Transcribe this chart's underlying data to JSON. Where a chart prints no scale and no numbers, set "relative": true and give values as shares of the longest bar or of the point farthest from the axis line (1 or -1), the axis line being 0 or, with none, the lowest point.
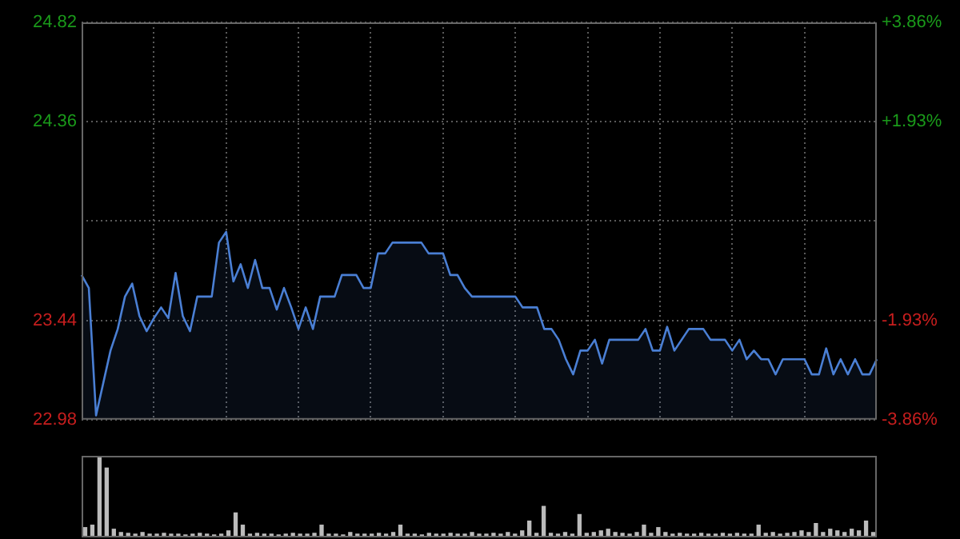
{
  "chart_data": [
    {
      "type": "area",
      "categories": [
        null,
        null,
        null,
        null,
        null,
        null,
        null,
        null,
        null,
        null,
        null,
        null,
        null,
        null,
        null,
        null,
        null,
        null,
        null,
        null,
        null,
        null,
        null,
        null,
        null,
        null,
        null,
        null,
        null,
        null,
        null,
        null,
        null,
        null,
        null,
        null,
        null,
        null,
        null,
        null,
        null,
        null,
        null,
        null,
        null,
        null,
        null,
        null,
        null,
        null,
        null,
        null,
        null,
        null,
        null,
        null,
        null,
        null,
        null,
        null,
        null,
        null,
        null,
        null,
        null,
        null,
        null,
        null,
        null,
        null,
        null,
        null,
        null,
        null,
        null,
        null,
        null,
        null,
        null,
        null,
        null,
        null,
        null,
        null,
        null,
        null,
        null,
        null,
        null,
        null,
        null,
        null,
        null,
        null,
        null,
        null,
        null,
        null,
        null,
        null,
        null,
        null,
        null,
        null,
        null,
        null,
        null,
        null,
        null,
        null,
        null
      ],
      "series": [
        {
          "color": "#4a7fd4",
          "values": [
            23.65,
            23.59,
            23.0,
            23.15,
            23.3,
            23.4,
            23.55,
            23.61,
            23.46,
            23.39,
            23.45,
            23.5,
            23.45,
            23.66,
            23.46,
            23.39,
            23.55,
            23.55,
            23.55,
            23.8,
            23.85,
            23.62,
            23.7,
            23.59,
            23.72,
            23.59,
            23.59,
            23.49,
            23.59,
            23.5,
            23.4,
            23.5,
            23.4,
            23.55,
            23.55,
            23.55,
            23.65,
            23.65,
            23.65,
            23.59,
            23.59,
            23.75,
            23.75,
            23.8,
            23.8,
            23.8,
            23.8,
            23.8,
            23.75,
            23.75,
            23.75,
            23.65,
            23.65,
            23.59,
            23.55,
            23.55,
            23.55,
            23.55,
            23.55,
            23.55,
            23.55,
            23.5,
            23.5,
            23.5,
            23.4,
            23.4,
            23.35,
            23.26,
            23.19,
            23.3,
            23.3,
            23.35,
            23.24,
            23.35,
            23.35,
            23.35,
            23.35,
            23.35,
            23.4,
            23.3,
            23.3,
            23.41,
            23.3,
            23.35,
            23.4,
            23.4,
            23.4,
            23.35,
            23.35,
            23.35,
            23.3,
            23.35,
            23.26,
            23.3,
            23.26,
            23.26,
            23.19,
            23.26,
            23.26,
            23.26,
            23.26,
            23.19,
            23.19,
            23.31,
            23.19,
            23.26,
            23.19,
            23.26,
            23.19,
            23.19,
            23.26
          ]
        }
      ],
      "ylim": [
        22.98,
        24.82
      ],
      "yticks": [
        22.98,
        23.44,
        {
          "value": 23.9,
          "label": null
        },
        24.36,
        24.82
      ],
      "y2lim": [
        -3.86,
        3.86
      ],
      "y2ticks": [
        {
          "value": -3.86,
          "label": "-3.86%"
        },
        {
          "value": -1.93,
          "label": "-1.93%"
        },
        {
          "value": 0,
          "label": null
        },
        {
          "value": 1.93,
          "label": "+1.93%"
        },
        {
          "value": 3.86,
          "label": "+3.86%"
        }
      ],
      "grid": true
    },
    {
      "type": "bar",
      "relative": true,
      "color": "#bbbbbb",
      "categories": [
        null,
        null,
        null,
        null,
        null,
        null,
        null,
        null,
        null,
        null,
        null,
        null,
        null,
        null,
        null,
        null,
        null,
        null,
        null,
        null,
        null,
        null,
        null,
        null,
        null,
        null,
        null,
        null,
        null,
        null,
        null,
        null,
        null,
        null,
        null,
        null,
        null,
        null,
        null,
        null,
        null,
        null,
        null,
        null,
        null,
        null,
        null,
        null,
        null,
        null,
        null,
        null,
        null,
        null,
        null,
        null,
        null,
        null,
        null,
        null,
        null,
        null,
        null,
        null,
        null,
        null,
        null,
        null,
        null,
        null,
        null,
        null,
        null,
        null,
        null,
        null,
        null,
        null,
        null,
        null,
        null,
        null,
        null,
        null,
        null,
        null,
        null,
        null,
        null,
        null,
        null,
        null,
        null,
        null,
        null,
        null,
        null,
        null,
        null,
        null,
        null,
        null,
        null,
        null,
        null,
        null,
        null,
        null,
        null,
        null,
        null
      ],
      "values": [
        0.12,
        0.15,
        1,
        0.85,
        0.1,
        0.06,
        0.05,
        0.04,
        0.06,
        0.04,
        0.04,
        0.05,
        0.04,
        0.04,
        0.03,
        0.04,
        0.05,
        0.04,
        0.03,
        0.04,
        0.08,
        0.3,
        0.15,
        0.04,
        0.05,
        0.04,
        0.04,
        0.03,
        0.04,
        0.05,
        0.04,
        0.04,
        0.05,
        0.15,
        0.04,
        0.04,
        0.03,
        0.06,
        0.04,
        0.04,
        0.04,
        0.05,
        0.04,
        0.06,
        0.15,
        0.04,
        0.04,
        0.03,
        0.05,
        0.04,
        0.04,
        0.05,
        0.04,
        0.04,
        0.06,
        0.04,
        0.04,
        0.05,
        0.04,
        0.06,
        0.04,
        0.08,
        0.2,
        0.05,
        0.38,
        0.05,
        0.04,
        0.06,
        0.04,
        0.28,
        0.05,
        0.06,
        0.08,
        0.1,
        0.06,
        0.05,
        0.04,
        0.06,
        0.15,
        0.05,
        0.12,
        0.06,
        0.04,
        0.05,
        0.04,
        0.04,
        0.05,
        0.04,
        0.04,
        0.05,
        0.04,
        0.05,
        0.04,
        0.04,
        0.15,
        0.05,
        0.06,
        0.04,
        0.05,
        0.06,
        0.08,
        0.06,
        0.17,
        0.06,
        0.1,
        0.08,
        0.06,
        0.1,
        0.08,
        0.2,
        0.06
      ]
    }
  ]
}
